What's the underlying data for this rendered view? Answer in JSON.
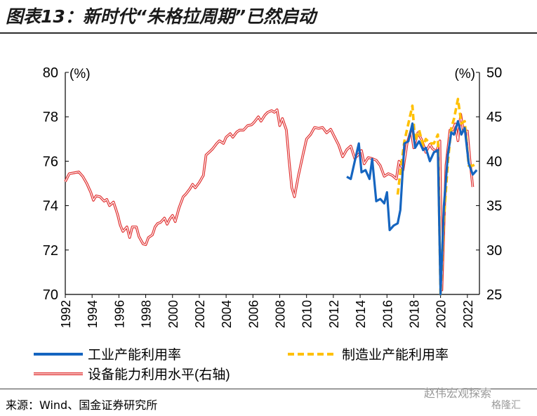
{
  "title": "图表13：新时代“朱格拉周期”已然启动",
  "source": "来源：Wind、国金证券研究所",
  "watermark": "赵伟宏观探索",
  "watermark2": "格隆汇",
  "colors": {
    "industrial": "#1565c0",
    "manufacturing": "#ffc000",
    "equipment": "#e03030"
  },
  "chart_data": {
    "type": "line",
    "x_ticks": [
      "1992",
      "1994",
      "1996",
      "1998",
      "2000",
      "2002",
      "2004",
      "2006",
      "2008",
      "2010",
      "2012",
      "2014",
      "2016",
      "2018",
      "2020",
      "2022"
    ],
    "left_axis": {
      "label": "(%)",
      "ylim": [
        70,
        80
      ],
      "ticks": [
        "80",
        "78",
        "76",
        "74",
        "72",
        "70"
      ]
    },
    "right_axis": {
      "label": "(%)",
      "ylim": [
        25,
        50
      ],
      "ticks": [
        "50",
        "45",
        "40",
        "35",
        "30",
        "25"
      ]
    },
    "legend": [
      {
        "name": "工业产能利用率",
        "style": "blue-solid"
      },
      {
        "name": "制造业产能利用率",
        "style": "yellow-dashed"
      },
      {
        "name": "设备能力利用水平(右轴)",
        "style": "red-double"
      }
    ],
    "series": [
      {
        "name": "设备能力利用水平(右轴)",
        "axis": "right",
        "points": [
          [
            1992.0,
            37.7
          ],
          [
            1992.3,
            38.6
          ],
          [
            1992.7,
            38.7
          ],
          [
            1993.0,
            38.8
          ],
          [
            1993.3,
            38.3
          ],
          [
            1993.6,
            37.5
          ],
          [
            1993.9,
            36.5
          ],
          [
            1994.1,
            35.6
          ],
          [
            1994.3,
            36.1
          ],
          [
            1994.6,
            36.0
          ],
          [
            1994.9,
            35.5
          ],
          [
            1995.1,
            35.7
          ],
          [
            1995.3,
            35.0
          ],
          [
            1995.6,
            35.4
          ],
          [
            1995.9,
            34.0
          ],
          [
            1996.1,
            32.8
          ],
          [
            1996.3,
            32.1
          ],
          [
            1996.6,
            32.6
          ],
          [
            1996.8,
            31.4
          ],
          [
            1997.0,
            32.6
          ],
          [
            1997.3,
            32.6
          ],
          [
            1997.5,
            31.5
          ],
          [
            1997.8,
            30.7
          ],
          [
            1998.0,
            30.6
          ],
          [
            1998.2,
            31.4
          ],
          [
            1998.5,
            31.7
          ],
          [
            1998.7,
            32.6
          ],
          [
            1998.9,
            33.0
          ],
          [
            1999.1,
            33.1
          ],
          [
            1999.4,
            33.6
          ],
          [
            1999.6,
            32.9
          ],
          [
            1999.8,
            33.5
          ],
          [
            2000.0,
            33.9
          ],
          [
            2000.2,
            33.2
          ],
          [
            2000.5,
            34.8
          ],
          [
            2000.8,
            36.0
          ],
          [
            2001.0,
            36.3
          ],
          [
            2001.3,
            36.9
          ],
          [
            2001.5,
            37.4
          ],
          [
            2001.7,
            37.0
          ],
          [
            2002.0,
            37.6
          ],
          [
            2002.3,
            38.4
          ],
          [
            2002.5,
            40.7
          ],
          [
            2002.8,
            41.1
          ],
          [
            2003.0,
            41.4
          ],
          [
            2003.3,
            42.0
          ],
          [
            2003.5,
            42.3
          ],
          [
            2003.8,
            42.0
          ],
          [
            2004.0,
            42.7
          ],
          [
            2004.3,
            43.1
          ],
          [
            2004.5,
            42.7
          ],
          [
            2004.8,
            43.3
          ],
          [
            2005.0,
            43.5
          ],
          [
            2005.3,
            43.5
          ],
          [
            2005.6,
            44.0
          ],
          [
            2005.9,
            44.1
          ],
          [
            2006.1,
            44.4
          ],
          [
            2006.4,
            45.0
          ],
          [
            2006.6,
            44.5
          ],
          [
            2006.9,
            45.2
          ],
          [
            2007.1,
            45.5
          ],
          [
            2007.4,
            45.7
          ],
          [
            2007.6,
            45.5
          ],
          [
            2007.8,
            45.8
          ],
          [
            2008.0,
            44.0
          ],
          [
            2008.2,
            44.8
          ],
          [
            2008.5,
            43.5
          ],
          [
            2008.7,
            40.0
          ],
          [
            2008.9,
            37.0
          ],
          [
            2009.1,
            36.0
          ],
          [
            2009.4,
            38.4
          ],
          [
            2009.7,
            40.5
          ],
          [
            2010.0,
            42.5
          ],
          [
            2010.3,
            43.0
          ],
          [
            2010.6,
            43.8
          ],
          [
            2010.9,
            43.7
          ],
          [
            2011.2,
            43.8
          ],
          [
            2011.5,
            43.2
          ],
          [
            2011.8,
            43.6
          ],
          [
            2012.1,
            42.7
          ],
          [
            2012.4,
            41.8
          ],
          [
            2012.7,
            40.5
          ],
          [
            2013.0,
            41.3
          ],
          [
            2013.3,
            41.7
          ],
          [
            2013.6,
            40.3
          ],
          [
            2013.9,
            40.8
          ],
          [
            2014.1,
            41.2
          ],
          [
            2014.3,
            39.7
          ],
          [
            2014.6,
            40.4
          ],
          [
            2014.9,
            40.3
          ],
          [
            2015.2,
            40.1
          ],
          [
            2015.5,
            39.5
          ],
          [
            2015.8,
            38.3
          ],
          [
            2016.1,
            38.6
          ],
          [
            2016.4,
            38.4
          ],
          [
            2016.7,
            38.0
          ],
          [
            2016.9,
            40.0
          ],
          [
            2017.2,
            39.0
          ],
          [
            2017.5,
            42.0
          ],
          [
            2017.8,
            43.5
          ],
          [
            2018.0,
            41.5
          ],
          [
            2018.3,
            43.2
          ],
          [
            2018.6,
            42.4
          ],
          [
            2018.9,
            41.0
          ],
          [
            2019.2,
            41.9
          ],
          [
            2019.4,
            41.4
          ],
          [
            2019.7,
            41.1
          ],
          [
            2019.95,
            42.3
          ],
          [
            2020.1,
            25.5
          ],
          [
            2020.4,
            39.5
          ],
          [
            2020.7,
            43.5
          ],
          [
            2020.9,
            43.5
          ],
          [
            2021.1,
            44.2
          ],
          [
            2021.3,
            42.3
          ],
          [
            2021.5,
            45.3
          ],
          [
            2021.7,
            43.4
          ],
          [
            2022.0,
            43.4
          ],
          [
            2022.2,
            40.0
          ],
          [
            2022.4,
            37.1
          ]
        ]
      },
      {
        "name": "制造业产能利用率",
        "axis": "left",
        "points": [
          [
            2016.8,
            74.5
          ],
          [
            2017.0,
            75.5
          ],
          [
            2017.3,
            76.9
          ],
          [
            2017.6,
            77.7
          ],
          [
            2017.9,
            78.5
          ],
          [
            2018.1,
            76.9
          ],
          [
            2018.4,
            77.4
          ],
          [
            2018.7,
            76.7
          ],
          [
            2018.9,
            77.0
          ],
          [
            2019.2,
            76.8
          ],
          [
            2019.5,
            76.8
          ],
          [
            2019.8,
            77.2
          ],
          [
            2020.0,
            70.0
          ],
          [
            2020.25,
            73.4
          ],
          [
            2020.55,
            76.0
          ],
          [
            2020.8,
            77.5
          ],
          [
            2021.0,
            77.9
          ],
          [
            2021.3,
            78.8
          ],
          [
            2021.55,
            77.7
          ],
          [
            2021.8,
            77.8
          ],
          [
            2022.1,
            75.8
          ],
          [
            2022.4,
            75.8
          ],
          [
            2022.7,
            75.9
          ]
        ]
      },
      {
        "name": "工业产能利用率",
        "axis": "left",
        "points": [
          [
            2013.0,
            75.3
          ],
          [
            2013.3,
            75.2
          ],
          [
            2013.6,
            76.0
          ],
          [
            2013.9,
            76.8
          ],
          [
            2014.1,
            75.5
          ],
          [
            2014.4,
            75.6
          ],
          [
            2014.7,
            75.2
          ],
          [
            2014.9,
            76.1
          ],
          [
            2015.2,
            74.2
          ],
          [
            2015.5,
            74.3
          ],
          [
            2015.8,
            74.1
          ],
          [
            2016.0,
            74.6
          ],
          [
            2016.2,
            72.9
          ],
          [
            2016.5,
            73.1
          ],
          [
            2016.8,
            73.2
          ],
          [
            2017.0,
            73.8
          ],
          [
            2017.3,
            76.8
          ],
          [
            2017.6,
            76.9
          ],
          [
            2017.9,
            77.7
          ],
          [
            2018.1,
            76.6
          ],
          [
            2018.4,
            76.9
          ],
          [
            2018.7,
            76.5
          ],
          [
            2018.9,
            76.6
          ],
          [
            2019.2,
            76.0
          ],
          [
            2019.5,
            76.4
          ],
          [
            2019.8,
            76.5
          ],
          [
            2020.0,
            70.0
          ],
          [
            2020.25,
            74.0
          ],
          [
            2020.55,
            76.3
          ],
          [
            2020.8,
            77.3
          ],
          [
            2021.0,
            77.2
          ],
          [
            2021.3,
            77.8
          ],
          [
            2021.55,
            77.2
          ],
          [
            2021.8,
            77.5
          ],
          [
            2022.1,
            75.9
          ],
          [
            2022.4,
            75.4
          ],
          [
            2022.7,
            75.6
          ]
        ]
      }
    ]
  }
}
